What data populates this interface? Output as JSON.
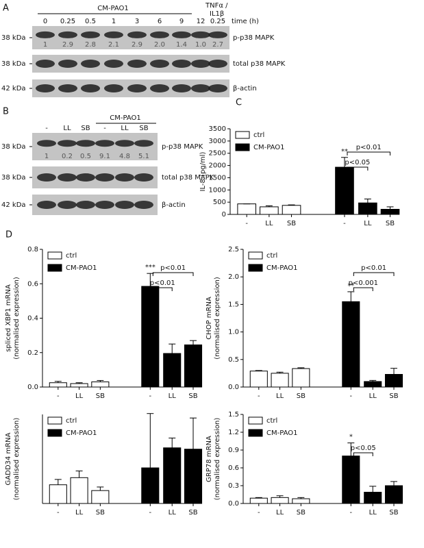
{
  "figure": {
    "A": {
      "label": "A",
      "group": "CM-PAO1",
      "treatment": [
        "TNFα /",
        "IL1β"
      ],
      "times": [
        "0",
        "0.25",
        "0.5",
        "1",
        "3",
        "6",
        "9",
        "12",
        "0.25"
      ],
      "time_label": "time (h)",
      "rows": [
        {
          "size": "38 kDa",
          "name": "p-p38 MAPK",
          "quant": [
            "1",
            "2.9",
            "2.8",
            "2.1",
            "2.9",
            "2.0",
            "1.4",
            "1.0",
            "2.7"
          ]
        },
        {
          "size": "38 kDa",
          "name": "total p38 MAPK"
        },
        {
          "size": "42 kDa",
          "name": "β-actin"
        }
      ]
    },
    "B": {
      "label": "B",
      "group": "CM-PAO1",
      "lanes": [
        "-",
        "LL",
        "SB",
        "-",
        "LL",
        "SB"
      ],
      "rows": [
        {
          "size": "38 kDa",
          "name": "p-p38 MAPK",
          "quant": [
            "1",
            "0.2",
            "0.5",
            "9.1",
            "4.8",
            "5.1"
          ]
        },
        {
          "size": "38 kDa",
          "name": "total p38 MAPK"
        },
        {
          "size": "42 kDa",
          "name": "β-actin"
        }
      ]
    },
    "D": {
      "label": "D"
    }
  },
  "chart_data": [
    {
      "type": "bar",
      "panel": "C",
      "ylabel": [
        "IL-8 (pg/ml)"
      ],
      "categories": [
        "-",
        "LL",
        "SB",
        "-",
        "LL",
        "SB"
      ],
      "series": [
        {
          "name": "ctrl",
          "color": "#ffffff",
          "values": [
            430,
            310,
            370,
            null,
            null,
            null
          ],
          "errors": [
            0,
            40,
            20,
            null,
            null,
            null
          ]
        },
        {
          "name": "CM-PAO1",
          "color": "#000000",
          "values": [
            null,
            null,
            null,
            1930,
            470,
            210
          ],
          "errors": [
            null,
            null,
            null,
            400,
            160,
            100
          ]
        }
      ],
      "ylim": [
        0,
        3500
      ],
      "yticks": [
        0,
        500,
        1000,
        1500,
        2000,
        2500,
        3000,
        3500
      ],
      "stars": "**",
      "brackets": [
        "p<0.05",
        "p<0.01"
      ]
    },
    {
      "type": "bar",
      "ylabel": [
        "spliced XBP1 mRNA",
        "(normalised expression)"
      ],
      "categories": [
        "-",
        "LL",
        "SB",
        "-",
        "LL",
        "SB"
      ],
      "series": [
        {
          "name": "ctrl",
          "color": "#ffffff",
          "values": [
            0.025,
            0.02,
            0.03,
            null,
            null,
            null
          ],
          "errors": [
            0.008,
            0.005,
            0.008,
            null,
            null,
            null
          ]
        },
        {
          "name": "CM-PAO1",
          "color": "#000000",
          "values": [
            null,
            null,
            null,
            0.585,
            0.195,
            0.245
          ],
          "errors": [
            null,
            null,
            null,
            0.075,
            0.055,
            0.025
          ]
        }
      ],
      "ylim": [
        0,
        0.8
      ],
      "yticks": [
        {
          "value": 0,
          "label": "0.0"
        },
        0.2,
        0.4,
        0.6,
        0.8
      ],
      "stars": "***",
      "brackets": [
        "p<0.01",
        "p<0.01"
      ]
    },
    {
      "type": "bar",
      "ylabel": [
        "CHOP mRNA",
        "(normalised expression)"
      ],
      "categories": [
        "-",
        "LL",
        "SB",
        "-",
        "LL",
        "SB"
      ],
      "series": [
        {
          "name": "ctrl",
          "color": "#ffffff",
          "values": [
            0.29,
            0.25,
            0.335,
            null,
            null,
            null
          ],
          "errors": [
            0.01,
            0.02,
            0.015,
            null,
            null,
            null
          ]
        },
        {
          "name": "CM-PAO1",
          "color": "#000000",
          "values": [
            null,
            null,
            null,
            1.55,
            0.1,
            0.23
          ],
          "errors": [
            null,
            null,
            null,
            0.18,
            0.02,
            0.11
          ]
        }
      ],
      "ylim": [
        0,
        2.5
      ],
      "yticks": [
        {
          "value": 0,
          "label": "0.0"
        },
        0.5,
        {
          "value": 1,
          "label": "1.0"
        },
        1.5,
        {
          "value": 2,
          "label": "2.0"
        },
        2.5
      ],
      "stars": "**",
      "brackets": [
        "p<0.001",
        "p<0.01"
      ]
    },
    {
      "type": "bar",
      "ylabel": [
        "GADD34 mRNA",
        "(normalised expression)"
      ],
      "categories": [
        "-",
        "LL",
        "SB",
        "-",
        "LL",
        "SB"
      ],
      "series": [
        {
          "name": "ctrl",
          "color": "#ffffff",
          "values": [
            4.2,
            5.8,
            2.9,
            null,
            null,
            null
          ],
          "errors": [
            1.2,
            1.5,
            0.8,
            null,
            null,
            null
          ]
        },
        {
          "name": "CM-PAO1",
          "color": "#000000",
          "values": [
            null,
            null,
            null,
            8.0,
            12.5,
            12.2
          ],
          "errors": [
            null,
            null,
            null,
            12.2,
            2.2,
            7.0
          ]
        }
      ],
      "ylim": [
        0,
        20
      ]
    },
    {
      "type": "bar",
      "ylabel": [
        "GRP78 mRNA",
        "(normalised expression)"
      ],
      "categories": [
        "-",
        "LL",
        "SB",
        "-",
        "LL",
        "SB"
      ],
      "series": [
        {
          "name": "ctrl",
          "color": "#ffffff",
          "values": [
            0.09,
            0.1,
            0.08,
            null,
            null,
            null
          ],
          "errors": [
            0.01,
            0.03,
            0.02,
            null,
            null,
            null
          ]
        },
        {
          "name": "CM-PAO1",
          "color": "#000000",
          "values": [
            null,
            null,
            null,
            0.8,
            0.19,
            0.3
          ],
          "errors": [
            null,
            null,
            null,
            0.22,
            0.1,
            0.07
          ]
        }
      ],
      "ylim": [
        0,
        1.5
      ],
      "yticks": [
        {
          "value": 0,
          "label": "0.0"
        },
        0.3,
        0.6,
        0.9,
        1.2,
        1.5
      ],
      "stars": "*",
      "brackets": [
        "p<0.05"
      ]
    }
  ]
}
